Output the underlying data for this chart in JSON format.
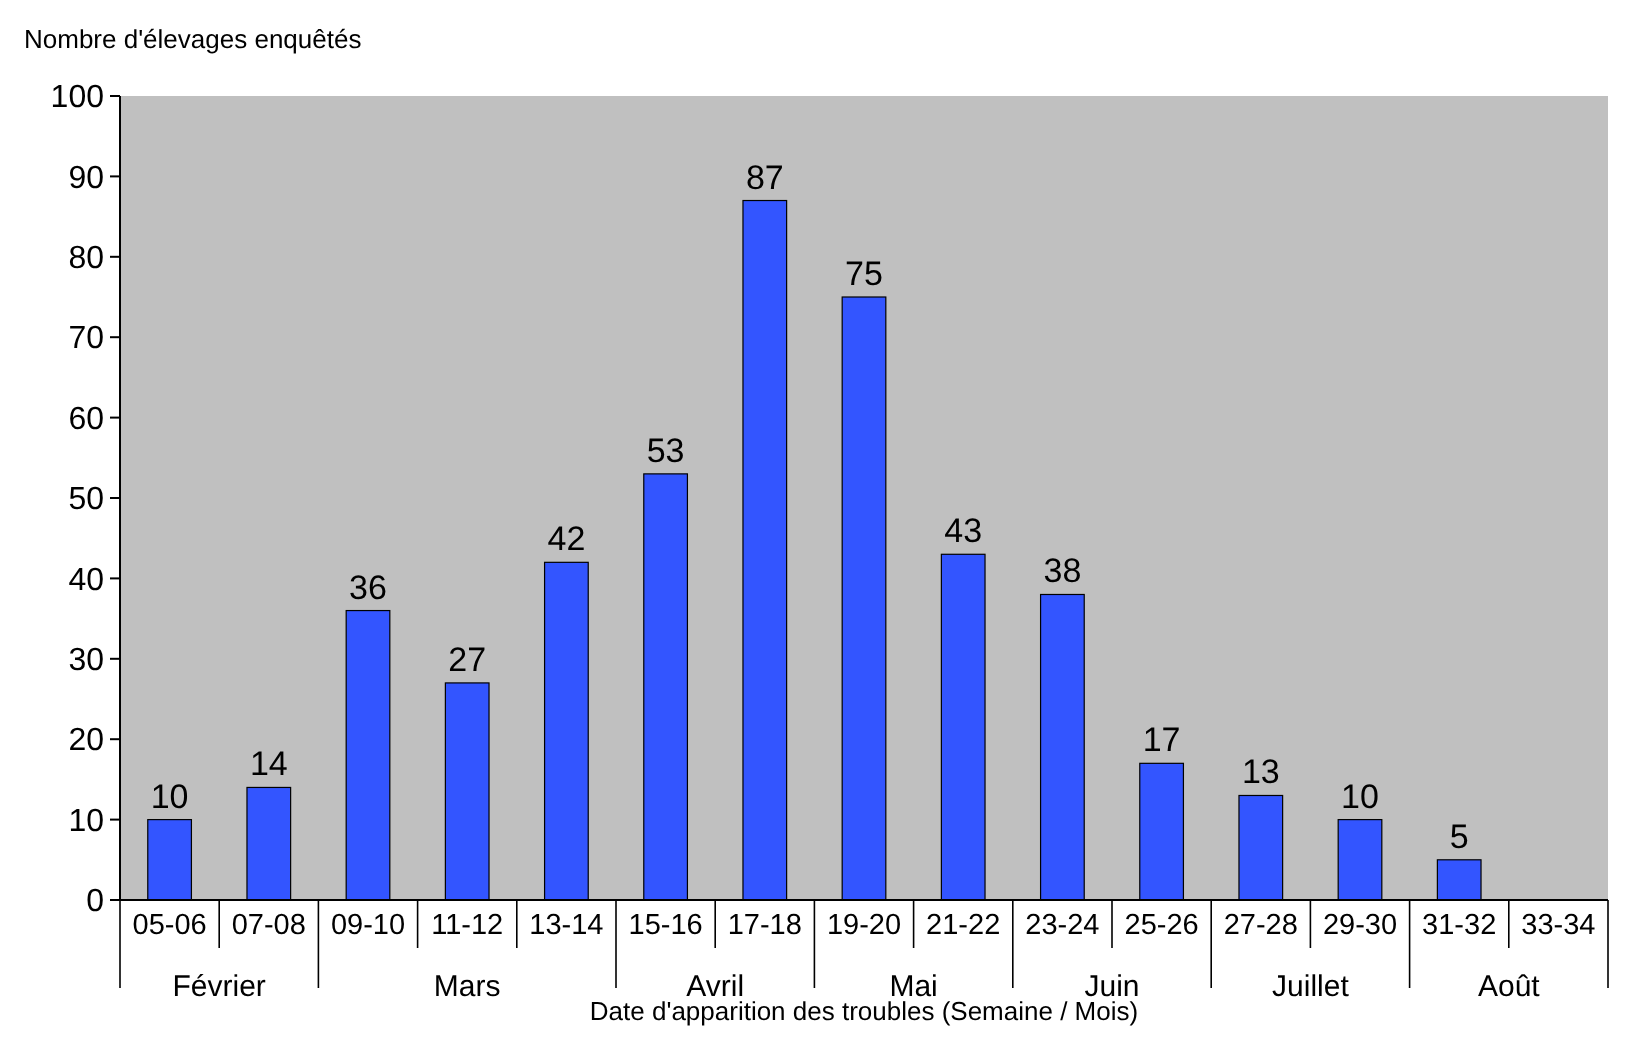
{
  "chart_data": {
    "type": "bar",
    "ylabel": "Nombre d'élevages enquêtés",
    "xlabel": "Date d'apparition des troubles (Semaine /  Mois)",
    "categories": [
      "05-06",
      "07-08",
      "09-10",
      "11-12",
      "13-14",
      "15-16",
      "17-18",
      "19-20",
      "21-22",
      "23-24",
      "25-26",
      "27-28",
      "29-30",
      "31-32",
      "33-34"
    ],
    "values": [
      10,
      14,
      36,
      27,
      42,
      53,
      87,
      75,
      43,
      38,
      17,
      13,
      10,
      5,
      null
    ],
    "color": "#3355ff",
    "ylim": [
      0,
      100
    ],
    "yticks": [
      0,
      10,
      20,
      30,
      40,
      50,
      60,
      70,
      80,
      90,
      100
    ],
    "grid": false,
    "data_labels": true,
    "annotations": [
      "Février",
      "Mars",
      "Avril",
      "Mai",
      "Juin",
      "Juillet",
      "Août"
    ]
  }
}
